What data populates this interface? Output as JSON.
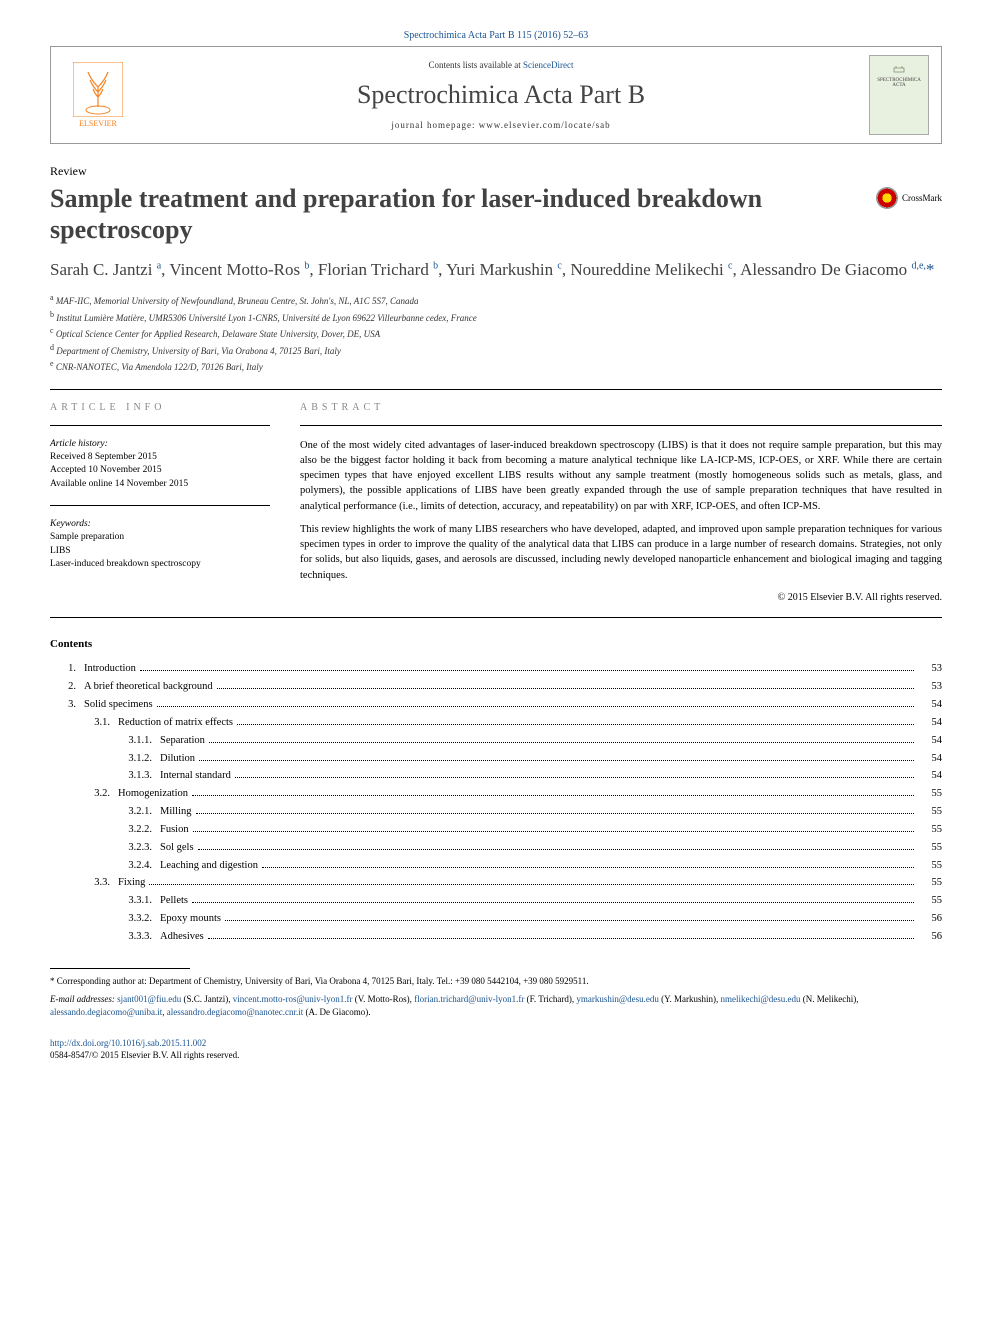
{
  "topLink": "Spectrochimica Acta Part B 115 (2016) 52–63",
  "header": {
    "publisher": "ELSEVIER",
    "contentsPre": "Contents lists available at ",
    "contentsLink": "ScienceDirect",
    "journalTitle": "Spectrochimica Acta Part B",
    "homepagePre": "journal homepage: ",
    "homepage": "www.elsevier.com/locate/sab",
    "coverLabel1": "SPECTROCHIMICA",
    "coverLabel2": "ACTA"
  },
  "articleType": "Review",
  "title": "Sample treatment and preparation for laser-induced breakdown spectroscopy",
  "crossmark": "CrossMark",
  "authors": {
    "a1": {
      "name": "Sarah C. Jantzi ",
      "sup": "a"
    },
    "a2": {
      "name": "Vincent Motto-Ros ",
      "sup": "b"
    },
    "a3": {
      "name": "Florian Trichard ",
      "sup": "b"
    },
    "a4": {
      "name": "Yuri Markushin ",
      "sup": "c"
    },
    "a5": {
      "name": "Noureddine Melikechi ",
      "sup": "c"
    },
    "a6": {
      "name": "Alessandro De Giacomo ",
      "sup": "d,e,",
      "corr": "*"
    }
  },
  "affiliations": {
    "a": "MAF-IIC, Memorial University of Newfoundland, Bruneau Centre, St. John's, NL, A1C 5S7, Canada",
    "b": "Institut Lumière Matière, UMR5306 Université Lyon 1-CNRS, Université de Lyon 69622 Villeurbanne cedex, France",
    "c": "Optical Science Center for Applied Research, Delaware State University, Dover, DE, USA",
    "d": "Department of Chemistry, University of Bari, Via Orabona 4, 70125 Bari, Italy",
    "e": "CNR-NANOTEC, Via Amendola 122/D, 70126 Bari, Italy"
  },
  "info": {
    "headerInfo": "article info",
    "historyLabel": "Article history:",
    "received": "Received 8 September 2015",
    "accepted": "Accepted 10 November 2015",
    "online": "Available online 14 November 2015",
    "keywordsLabel": "Keywords:",
    "kw1": "Sample preparation",
    "kw2": "LIBS",
    "kw3": "Laser-induced breakdown spectroscopy"
  },
  "abstract": {
    "header": "abstract",
    "p1": "One of the most widely cited advantages of laser-induced breakdown spectroscopy (LIBS) is that it does not require sample preparation, but this may also be the biggest factor holding it back from becoming a mature analytical technique like LA-ICP-MS, ICP-OES, or XRF. While there are certain specimen types that have enjoyed excellent LIBS results without any sample treatment (mostly homogeneous solids such as metals, glass, and polymers), the possible applications of LIBS have been greatly expanded through the use of sample preparation techniques that have resulted in analytical performance (i.e., limits of detection, accuracy, and repeatability) on par with XRF, ICP-OES, and often ICP-MS.",
    "p2": "This review highlights the work of many LIBS researchers who have developed, adapted, and improved upon sample preparation techniques for various specimen types in order to improve the quality of the analytical data that LIBS can produce in a large number of research domains. Strategies, not only for solids, but also liquids, gases, and aerosols are discussed, including newly developed nanoparticle enhancement and biological imaging and tagging techniques.",
    "copyright": "© 2015 Elsevier B.V. All rights reserved."
  },
  "contentsHeading": "Contents",
  "toc": [
    {
      "level": 1,
      "num": "1.",
      "title": "Introduction",
      "page": "53"
    },
    {
      "level": 1,
      "num": "2.",
      "title": "A brief theoretical background",
      "page": "53"
    },
    {
      "level": 1,
      "num": "3.",
      "title": "Solid specimens",
      "page": "54"
    },
    {
      "level": 2,
      "num": "3.1.",
      "title": "Reduction of matrix effects",
      "page": "54"
    },
    {
      "level": 3,
      "num": "3.1.1.",
      "title": "Separation",
      "page": "54"
    },
    {
      "level": 3,
      "num": "3.1.2.",
      "title": "Dilution",
      "page": "54"
    },
    {
      "level": 3,
      "num": "3.1.3.",
      "title": "Internal standard",
      "page": "54"
    },
    {
      "level": 2,
      "num": "3.2.",
      "title": "Homogenization",
      "page": "55"
    },
    {
      "level": 3,
      "num": "3.2.1.",
      "title": "Milling",
      "page": "55"
    },
    {
      "level": 3,
      "num": "3.2.2.",
      "title": "Fusion",
      "page": "55"
    },
    {
      "level": 3,
      "num": "3.2.3.",
      "title": "Sol gels",
      "page": "55"
    },
    {
      "level": 3,
      "num": "3.2.4.",
      "title": "Leaching and digestion",
      "page": "55"
    },
    {
      "level": 2,
      "num": "3.3.",
      "title": "Fixing",
      "page": "55"
    },
    {
      "level": 3,
      "num": "3.3.1.",
      "title": "Pellets",
      "page": "55"
    },
    {
      "level": 3,
      "num": "3.3.2.",
      "title": "Epoxy mounts",
      "page": "56"
    },
    {
      "level": 3,
      "num": "3.3.3.",
      "title": "Adhesives",
      "page": "56"
    }
  ],
  "footnote": {
    "corrStar": "*",
    "corrText": " Corresponding author at: Department of Chemistry, University of Bari, Via Orabona 4, 70125 Bari, Italy. Tel.: +39 080 5442104, +39 080 5929511.",
    "emailLabel": "E-mail addresses: ",
    "e1": "sjant001@fiu.edu",
    "n1": " (S.C. Jantzi), ",
    "e2": "vincent.motto-ros@univ-lyon1.fr",
    "n2": " (V. Motto-Ros), ",
    "e3": "florian.trichard@univ-lyon1.fr",
    "n3": " (F. Trichard), ",
    "e4": "ymarkushin@desu.edu",
    "n4": " (Y. Markushin), ",
    "e5": "nmelikechi@desu.edu",
    "n5": " (N. Melikechi), ",
    "e6": "alessando.degiacomo@uniba.it",
    "n6": ", ",
    "e7": "alessandro.degiacomo@nanotec.cnr.it",
    "n7": " (A. De Giacomo)."
  },
  "doi": {
    "link": "http://dx.doi.org/10.1016/j.sab.2015.11.002",
    "issn": "0584-8547/© 2015 Elsevier B.V. All rights reserved."
  },
  "colors": {
    "link": "#1a5490",
    "publisher": "#f58220",
    "titleText": "#424242"
  }
}
